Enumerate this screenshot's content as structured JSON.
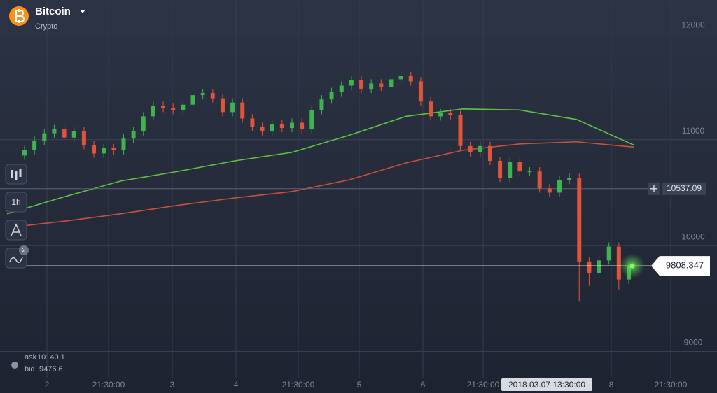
{
  "header": {
    "title": "Bitcoin",
    "subtitle": "Crypto"
  },
  "toolbar": {
    "timeframe": "1h",
    "indicator_count": 2
  },
  "quotes": {
    "ask_label": "ask",
    "ask": 10140.1,
    "bid_label": "bid",
    "bid": 9476.6
  },
  "chart_data": {
    "type": "candlestick",
    "up_color": "#3fb34f",
    "down_color": "#e0553a",
    "ylim": [
      8700,
      12200
    ],
    "yticks": [
      9000,
      10000,
      11000,
      12000
    ],
    "grid": true,
    "xticks": [
      "2",
      "21:30:00",
      "3",
      "4",
      "21:30:00",
      "5",
      "6",
      "21:30:00",
      "8",
      "21:30:00"
    ],
    "crosshair_time": "2018.03.07 13:30:00",
    "crosshair_price": 10537.09,
    "current_price": 9808.347,
    "open": [
      10850,
      10900,
      10990,
      11060,
      11100,
      11020,
      11080,
      10950,
      10870,
      10920,
      10900,
      11010,
      11080,
      11220,
      11320,
      11300,
      11280,
      11330,
      11420,
      11440,
      11390,
      11260,
      11350,
      11200,
      11120,
      11080,
      11150,
      11110,
      11160,
      11100,
      11280,
      11380,
      11450,
      11510,
      11560,
      11480,
      11530,
      11500,
      11570,
      11600,
      11550,
      11360,
      11220,
      11250,
      11230,
      10940,
      10880,
      10940,
      10800,
      10640,
      10790,
      10700,
      10700,
      10540,
      10500,
      10620,
      10640,
      9850,
      9740,
      9860,
      9990,
      9680
    ],
    "high": [
      10940,
      11030,
      11100,
      11140,
      11140,
      11120,
      11120,
      10990,
      10960,
      10960,
      11050,
      11120,
      11260,
      11360,
      11360,
      11340,
      11370,
      11460,
      11480,
      11480,
      11430,
      11390,
      11390,
      11240,
      11160,
      11190,
      11190,
      11200,
      11200,
      11320,
      11420,
      11490,
      11550,
      11600,
      11600,
      11570,
      11570,
      11610,
      11640,
      11640,
      11590,
      11400,
      11290,
      11290,
      11270,
      10980,
      10980,
      10980,
      10840,
      10830,
      10830,
      10740,
      10740,
      10580,
      10660,
      10680,
      10680,
      9890,
      9900,
      10030,
      10030,
      9850
    ],
    "low": [
      10810,
      10860,
      10950,
      11020,
      10980,
      10980,
      10910,
      10830,
      10830,
      10860,
      10860,
      10970,
      11040,
      11180,
      11260,
      11240,
      11240,
      11290,
      11380,
      11350,
      11220,
      11220,
      11160,
      11080,
      11040,
      11040,
      11070,
      11070,
      11060,
      11060,
      11240,
      11340,
      11410,
      11470,
      11440,
      11440,
      11460,
      11460,
      11530,
      11510,
      11320,
      11180,
      11180,
      11190,
      10900,
      10840,
      10840,
      10760,
      10600,
      10600,
      10660,
      10660,
      10500,
      10460,
      10460,
      10580,
      9470,
      9620,
      9700,
      9820,
      9580,
      9640
    ],
    "close": [
      10900,
      10990,
      11060,
      11100,
      11020,
      11080,
      10950,
      10870,
      10920,
      10900,
      11010,
      11080,
      11220,
      11320,
      11300,
      11280,
      11330,
      11420,
      11440,
      11390,
      11260,
      11350,
      11200,
      11120,
      11080,
      11150,
      11110,
      11160,
      11100,
      11280,
      11380,
      11450,
      11510,
      11560,
      11480,
      11530,
      11500,
      11570,
      11600,
      11550,
      11360,
      11220,
      11250,
      11230,
      10940,
      10880,
      10940,
      10800,
      10640,
      10790,
      10700,
      10700,
      10540,
      10500,
      10620,
      10640,
      9850,
      9740,
      9860,
      9990,
      9680,
      9808.347
    ],
    "lines": [
      {
        "color": "#5cc33c",
        "values": [
          10300,
          10460,
          10610,
          10700,
          10800,
          10880,
          11040,
          11220,
          11290,
          11280,
          11190,
          10950
        ]
      },
      {
        "color": "#c9503a",
        "values": [
          10170,
          10230,
          10300,
          10380,
          10450,
          10510,
          10620,
          10780,
          10900,
          10960,
          10980,
          10930
        ]
      }
    ]
  }
}
